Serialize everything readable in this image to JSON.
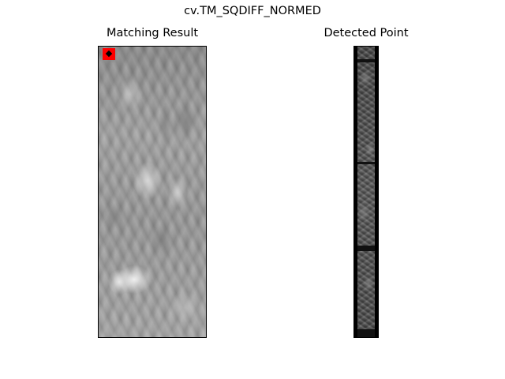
{
  "figure": {
    "suptitle": "cv.TM_SQDIFF_NORMED"
  },
  "panels": {
    "left": {
      "title": "Matching Result",
      "content": "template-matching-heatmap",
      "marker_color": "#ff0000"
    },
    "right": {
      "title": "Detected Point",
      "content": "grayscale-source-strip"
    }
  }
}
